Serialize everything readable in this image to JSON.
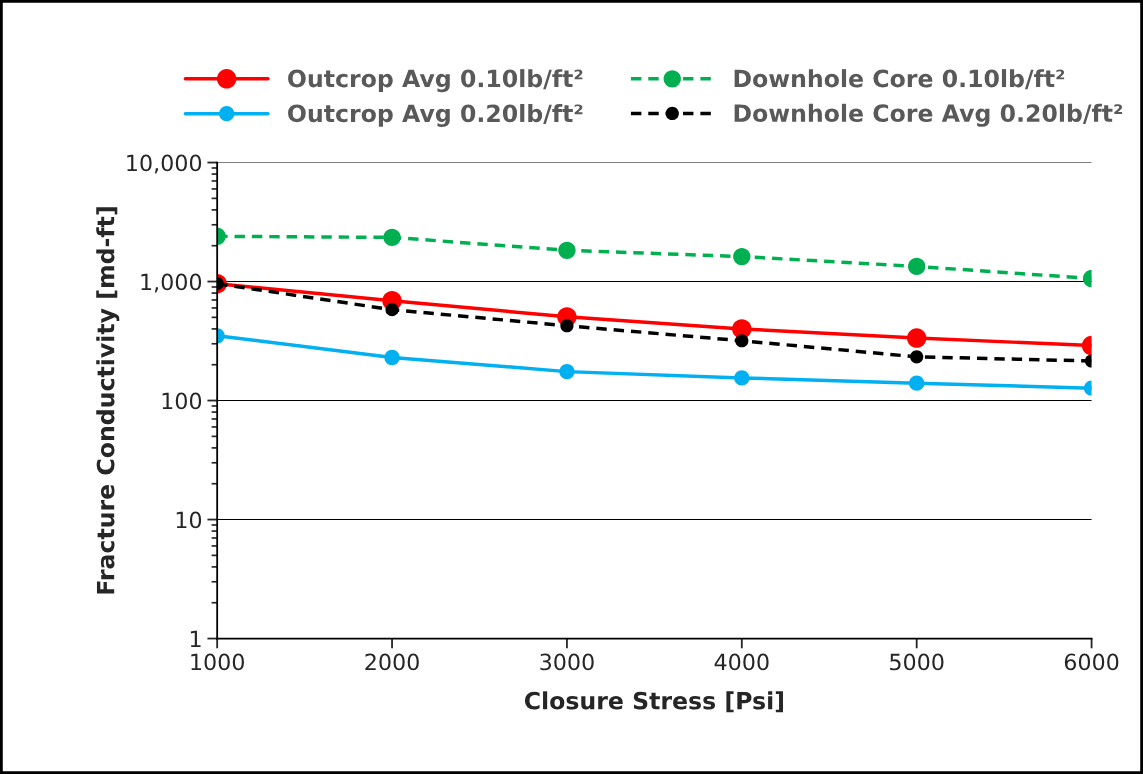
{
  "chart_data": {
    "type": "line",
    "xlabel": "Closure Stress [Psi]",
    "ylabel": "Fracture Conductivity [md-ft]",
    "x": [
      1000,
      2000,
      3000,
      4000,
      5000,
      6000
    ],
    "series": [
      {
        "name": "Outcrop Avg 0.10lb/ft²",
        "color": "#ff0000",
        "line_style": "solid",
        "values": [
          960,
          690,
          505,
          400,
          335,
          290
        ]
      },
      {
        "name": "Downhole Core 0.10lb/ft²",
        "color": "#00b050",
        "line_style": "dashed",
        "values": [
          2400,
          2350,
          1830,
          1620,
          1340,
          1060
        ]
      },
      {
        "name": "Outcrop Avg 0.20lb/ft²",
        "color": "#00b0f0",
        "line_style": "solid",
        "values": [
          350,
          230,
          175,
          155,
          140,
          127
        ]
      },
      {
        "name": "Downhole Core Avg 0.20lb/ft²",
        "color": "#000000",
        "line_style": "dashed",
        "values": [
          960,
          580,
          425,
          318,
          233,
          215
        ]
      }
    ],
    "log": "y",
    "xlim": [
      1000,
      6000
    ],
    "xticks": [
      1000,
      2000,
      3000,
      4000,
      5000,
      6000
    ],
    "ylim": [
      1,
      10000
    ],
    "yticks": [
      1,
      10,
      100,
      {
        "value": 1000,
        "label": "1,000"
      },
      {
        "value": 10000,
        "label": "10,000"
      }
    ],
    "grid": "y",
    "legend": "top",
    "marker": "circle"
  }
}
